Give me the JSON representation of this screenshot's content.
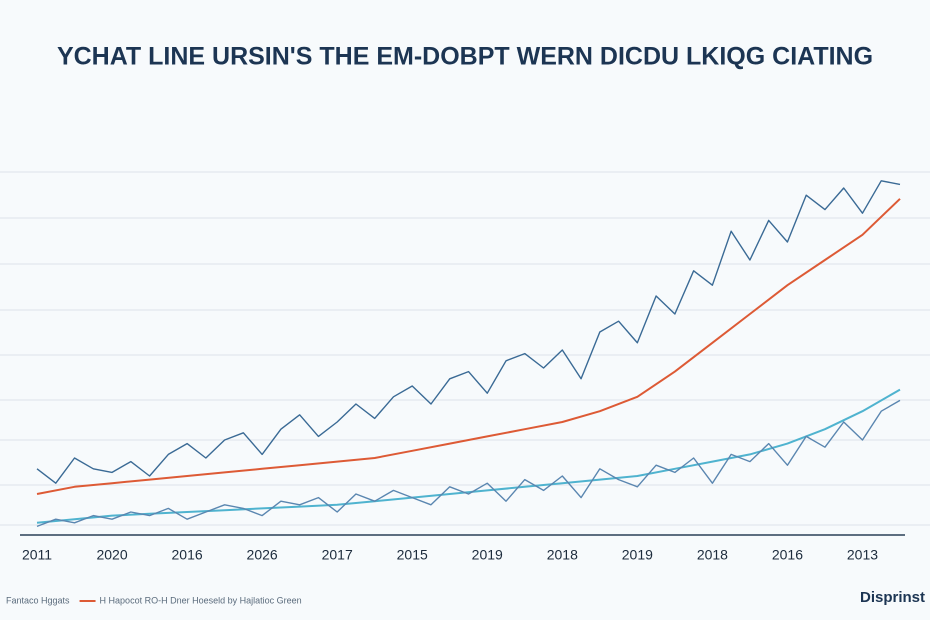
{
  "chart_data": {
    "type": "line",
    "title": "YCHAT LINE URSIN'S THE EM-DOBPT WERN DICDU LKIQG CIATING",
    "categories": [
      "2011",
      "2020",
      "2016",
      "2026",
      "2017",
      "2015",
      "2019",
      "2018",
      "2019",
      "2018",
      "2016",
      "2013"
    ],
    "xlim": [
      -0.2,
      11.5
    ],
    "ylim": [
      0,
      100
    ],
    "series": [
      {
        "name": "Fantaco Hggats",
        "color": "#3a6a95",
        "x": [
          0,
          0.25,
          0.5,
          0.75,
          1,
          1.25,
          1.5,
          1.75,
          2,
          2.25,
          2.5,
          2.75,
          3,
          3.25,
          3.5,
          3.75,
          4,
          4.25,
          4.5,
          4.75,
          5,
          5.25,
          5.5,
          5.75,
          6,
          6.25,
          6.5,
          6.75,
          7,
          7.25,
          7.5,
          7.75,
          8,
          8.25,
          8.5,
          8.75,
          9,
          9.25,
          9.5,
          9.75,
          10,
          10.25,
          10.5,
          10.75,
          11,
          11.25,
          11.5
        ],
        "values": [
          17,
          13,
          20,
          17,
          16,
          19,
          15,
          21,
          24,
          20,
          25,
          27,
          21,
          28,
          32,
          26,
          30,
          35,
          31,
          37,
          40,
          35,
          42,
          44,
          38,
          47,
          49,
          45,
          50,
          42,
          55,
          58,
          52,
          65,
          60,
          72,
          68,
          83,
          75,
          86,
          80,
          93,
          89,
          95,
          88,
          97,
          96
        ]
      },
      {
        "name": "H Hapocot RO-H Dner Hoeseld by Hajlatioc Green",
        "color": "#dd5a35",
        "x": [
          0,
          0.5,
          1,
          1.5,
          2,
          2.5,
          3,
          3.5,
          4,
          4.5,
          5,
          5.5,
          6,
          6.5,
          7,
          7.5,
          8,
          8.5,
          9,
          9.5,
          10,
          10.5,
          11,
          11.5
        ],
        "values": [
          10,
          12,
          13,
          14,
          15,
          16,
          17,
          18,
          19,
          20,
          22,
          24,
          26,
          28,
          30,
          33,
          37,
          44,
          52,
          60,
          68,
          75,
          82,
          92
        ]
      },
      {
        "color": "#4fb3cf",
        "x": [
          0,
          0.5,
          1,
          1.5,
          2,
          2.5,
          3,
          3.5,
          4,
          4.5,
          5,
          5.5,
          6,
          6.5,
          7,
          7.5,
          8,
          8.5,
          9,
          9.5,
          10,
          10.5,
          11,
          11.5
        ],
        "values": [
          2,
          3,
          4,
          4.5,
          5,
          5.5,
          6,
          6.5,
          7,
          8,
          9,
          10,
          11,
          12,
          13,
          14,
          15,
          17,
          19,
          21,
          24,
          28,
          33,
          39
        ]
      },
      {
        "color": "#5a86b0",
        "x": [
          0,
          0.25,
          0.5,
          0.75,
          1,
          1.25,
          1.5,
          1.75,
          2,
          2.25,
          2.5,
          2.75,
          3,
          3.25,
          3.5,
          3.75,
          4,
          4.25,
          4.5,
          4.75,
          5,
          5.25,
          5.5,
          5.75,
          6,
          6.25,
          6.5,
          6.75,
          7,
          7.25,
          7.5,
          7.75,
          8,
          8.25,
          8.5,
          8.75,
          9,
          9.25,
          9.5,
          9.75,
          10,
          10.25,
          10.5,
          10.75,
          11,
          11.25,
          11.5
        ],
        "values": [
          1,
          3,
          2,
          4,
          3,
          5,
          4,
          6,
          3,
          5,
          7,
          6,
          4,
          8,
          7,
          9,
          5,
          10,
          8,
          11,
          9,
          7,
          12,
          10,
          13,
          8,
          14,
          11,
          15,
          9,
          17,
          14,
          12,
          18,
          16,
          20,
          13,
          21,
          19,
          24,
          18,
          26,
          23,
          30,
          25,
          33,
          36
        ]
      }
    ],
    "watermark": "Disprinst"
  }
}
